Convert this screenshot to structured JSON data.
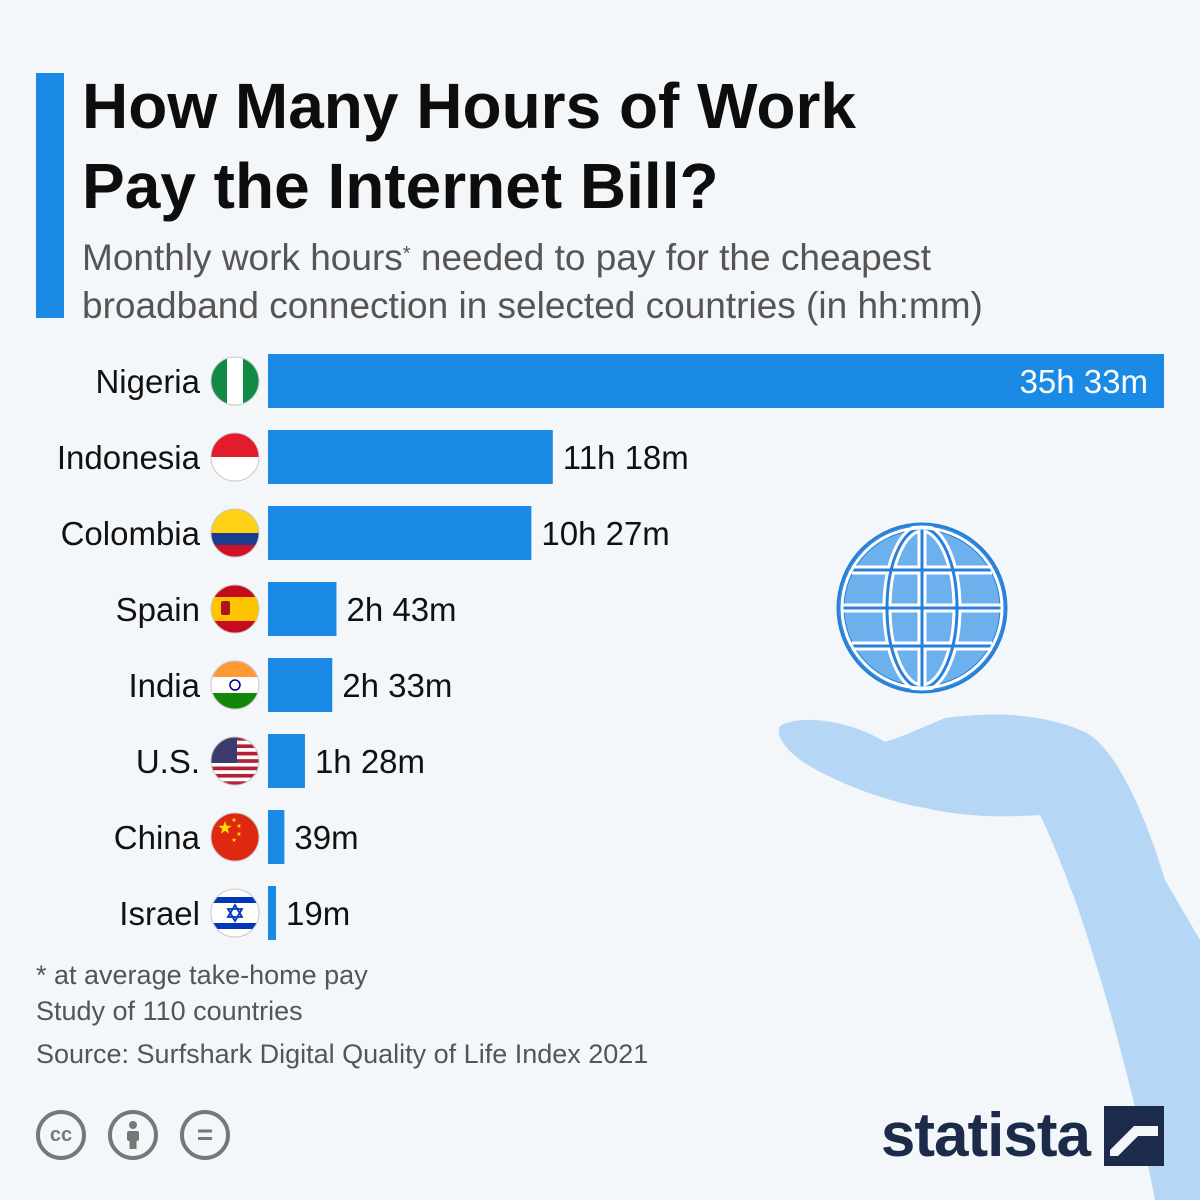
{
  "title_line1": "How Many Hours of Work",
  "title_line2": "Pay the Internet Bill?",
  "subtitle_part1": "Monthly work hours",
  "subtitle_star": "*",
  "subtitle_line1_rest": " needed to pay for the cheapest",
  "subtitle_line2": "broadband connection in selected countries (in hh:mm)",
  "colors": {
    "bar": "#1a8ae6",
    "accent": "#1a8ae6",
    "label_inside": "#ffffff",
    "label_outside": "#111111"
  },
  "chart_data": {
    "type": "bar",
    "orientation": "horizontal",
    "categories": [
      "Nigeria",
      "Indonesia",
      "Colombia",
      "Spain",
      "India",
      "U.S.",
      "China",
      "Israel"
    ],
    "values": [
      2133,
      678,
      627,
      163,
      153,
      88,
      39,
      19
    ],
    "value_units": "minutes",
    "labels": [
      "35h 33m",
      "11h 18m",
      "10h 27m",
      "2h 43m",
      "2h 33m",
      "1h 28m",
      "39m",
      "19m"
    ],
    "flags": [
      "nigeria-flag",
      "indonesia-flag",
      "colombia-flag",
      "spain-flag",
      "india-flag",
      "us-flag",
      "china-flag",
      "israel-flag"
    ]
  },
  "footnotes": {
    "note": "* at average take-home pay",
    "study": "Study of 110 countries",
    "source": "Source: Surfshark Digital Quality of Life Index 2021"
  },
  "license_icons": {
    "cc": "cc",
    "equals": "="
  },
  "brand": {
    "name": "statista"
  }
}
